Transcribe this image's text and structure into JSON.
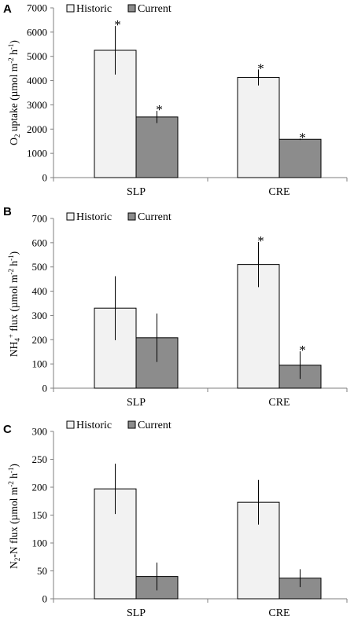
{
  "colors": {
    "historic": "#f2f2f2",
    "current": "#8c8c8c",
    "stroke": "#000000",
    "axis": "#7f7f7f"
  },
  "chart_data": [
    {
      "panel": "A",
      "type": "bar",
      "categories": [
        "SLP",
        "CRE"
      ],
      "ylabel": "O2 uptake (µmol m-2 h-1)",
      "ylim": [
        0,
        7000
      ],
      "yticks": [
        0,
        1000,
        2000,
        3000,
        4000,
        5000,
        6000,
        7000
      ],
      "legend": "top-left",
      "series": [
        {
          "name": "Historic",
          "values": [
            5250,
            4130
          ],
          "errors": [
            1000,
            330
          ],
          "significant": [
            true,
            true
          ]
        },
        {
          "name": "Current",
          "values": [
            2500,
            1580
          ],
          "errors": [
            250,
            30
          ],
          "significant": [
            true,
            true
          ]
        }
      ]
    },
    {
      "panel": "B",
      "type": "bar",
      "categories": [
        "SLP",
        "CRE"
      ],
      "ylabel": "NH4+ flux (µmol m-2 h-1)",
      "ylim": [
        0,
        700
      ],
      "yticks": [
        0,
        100,
        200,
        300,
        400,
        500,
        600,
        700
      ],
      "legend": "top-left",
      "series": [
        {
          "name": "Historic",
          "values": [
            330,
            510
          ],
          "errors": [
            132,
            93
          ],
          "significant": [
            false,
            true
          ]
        },
        {
          "name": "Current",
          "values": [
            208,
            95
          ],
          "errors": [
            100,
            57
          ],
          "significant": [
            false,
            true
          ]
        }
      ]
    },
    {
      "panel": "C",
      "type": "bar",
      "categories": [
        "SLP",
        "CRE"
      ],
      "ylabel": "N2-N flux (µmol m-2 h-1)",
      "ylim": [
        0,
        300
      ],
      "yticks": [
        0,
        50,
        100,
        150,
        200,
        250,
        300
      ],
      "legend": "top-left",
      "series": [
        {
          "name": "Historic",
          "values": [
            197,
            173
          ],
          "errors": [
            45,
            40
          ],
          "significant": [
            false,
            false
          ]
        },
        {
          "name": "Current",
          "values": [
            40,
            37
          ],
          "errors": [
            25,
            16
          ],
          "significant": [
            false,
            false
          ]
        }
      ]
    }
  ]
}
